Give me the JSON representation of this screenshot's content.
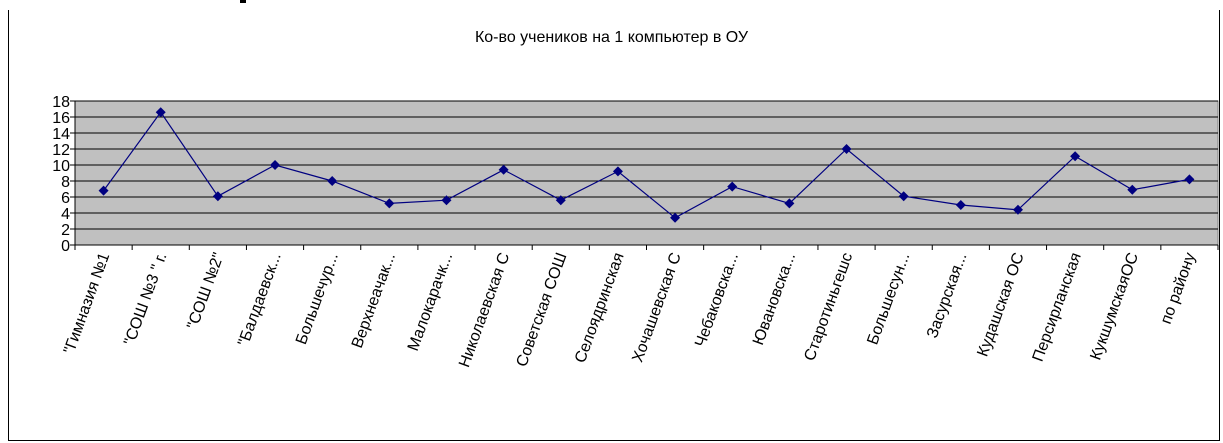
{
  "chart_data": {
    "type": "line",
    "title": "Ко-во учеников на 1 компьютер в ОУ",
    "xlabel": "",
    "ylabel": "",
    "ylim": [
      0,
      18
    ],
    "yticks": [
      0,
      2,
      4,
      6,
      8,
      10,
      12,
      14,
      16,
      18
    ],
    "grid": true,
    "legend": "none",
    "colors": {
      "line": "#000080",
      "marker": "#000080",
      "plot_bg": "#c0c0c0",
      "grid": "#000000"
    },
    "categories": [
      "\"Гимназия №1",
      "\"СОШ №3 \" г.",
      "\"СОШ №2\"",
      "\"Балдаевск...",
      "Большечур...",
      "Верхнеачак...",
      "Малокарачк...",
      "Николаевская С",
      "Советская СОШ",
      "Селоядринская",
      "Хочашевская С",
      "Чебаковска...",
      "Ювановска...",
      "Старотиньгешс",
      "Большесун...",
      "Засурская...",
      "Кудашская ОС",
      "Персирланская",
      "КукшумскаяОС",
      "по району"
    ],
    "series": [
      {
        "name": "",
        "values": [
          6.8,
          16.6,
          6.1,
          10.0,
          8.0,
          5.2,
          5.6,
          9.4,
          5.6,
          9.2,
          3.4,
          7.3,
          5.2,
          12.0,
          6.1,
          5.0,
          4.4,
          11.1,
          6.9,
          8.2
        ]
      }
    ]
  }
}
